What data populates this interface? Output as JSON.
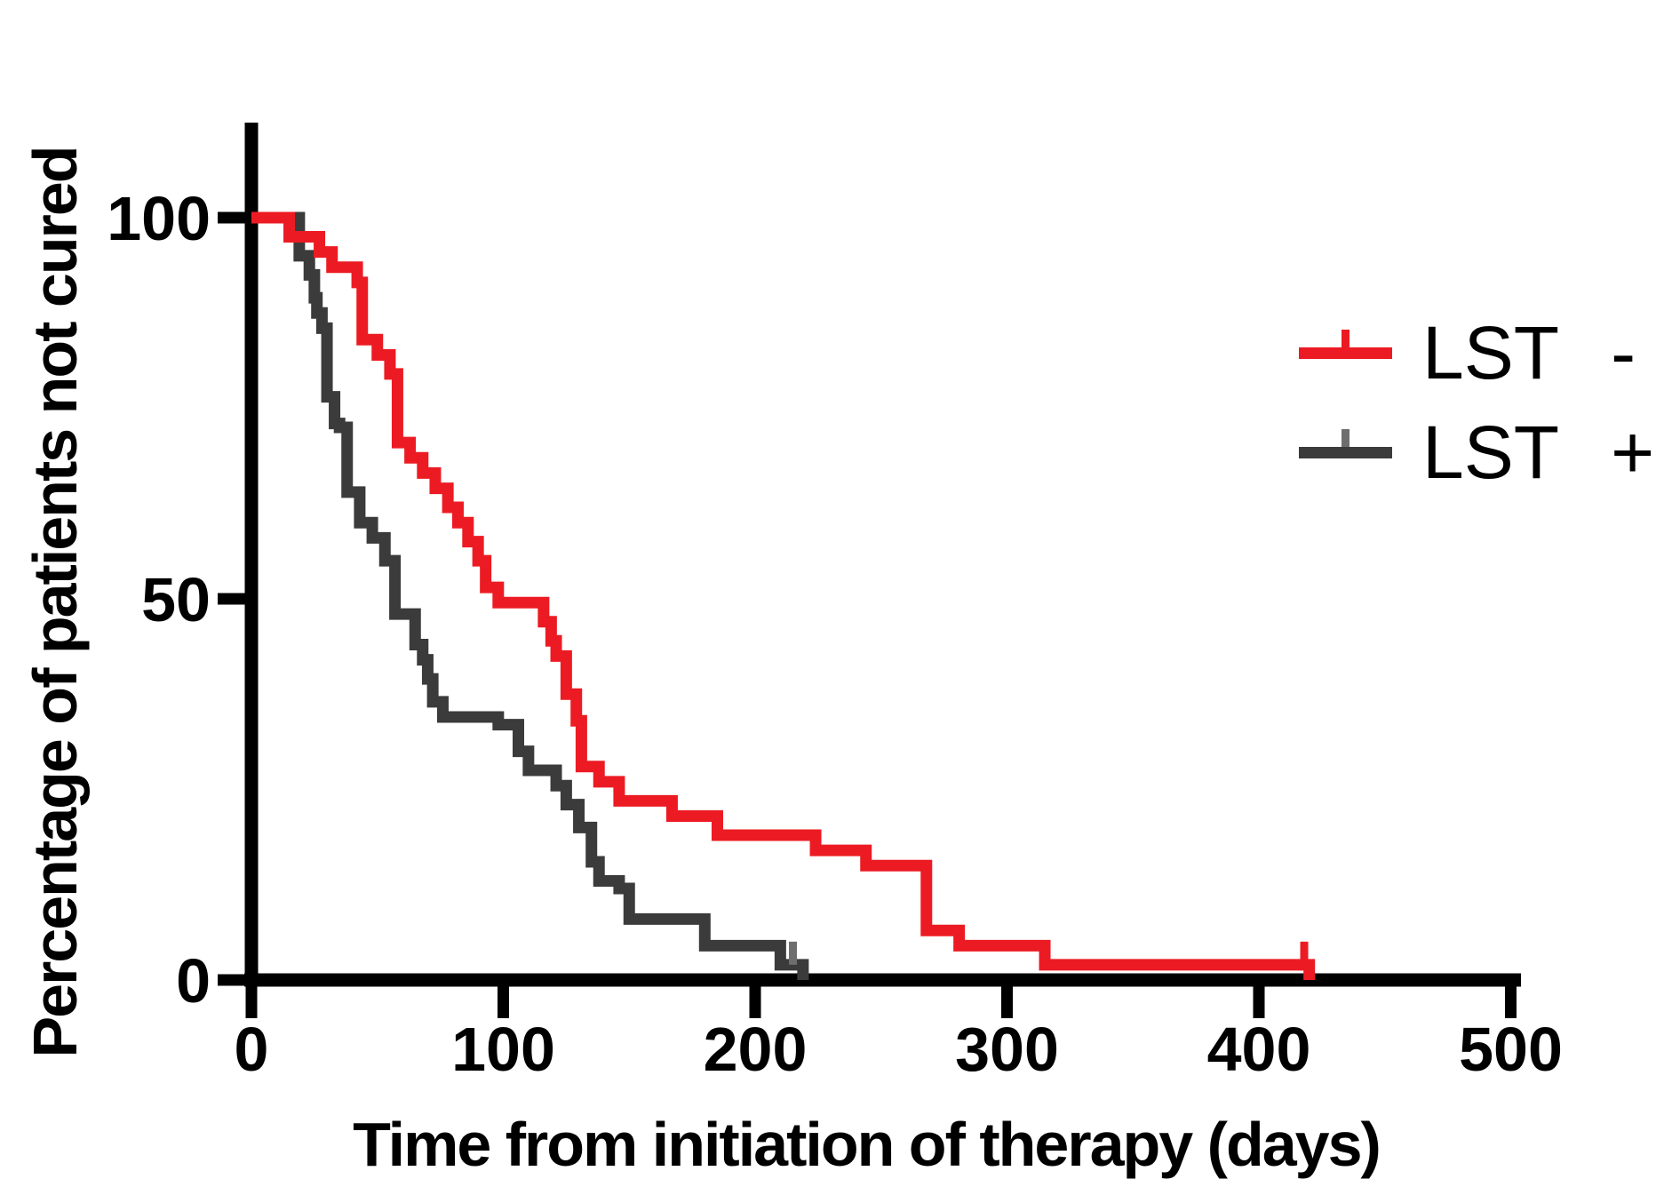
{
  "figure": {
    "background": "#ffffff",
    "axis_color": "#000000"
  },
  "chart_data": {
    "type": "line",
    "subtype": "kaplan-meier-step",
    "title": "",
    "xlabel": "Time from initiation of therapy (days)",
    "ylabel": "Percentage of patients not cured",
    "xlim": [
      0,
      500
    ],
    "ylim": [
      0,
      100
    ],
    "xticks": [
      0,
      100,
      200,
      300,
      400,
      500
    ],
    "yticks": [
      0,
      50,
      100
    ],
    "grid": false,
    "legend_position": "top-right",
    "series": [
      {
        "name": "LST -",
        "legend_text": "LST",
        "legend_sign": "-",
        "color": "#ec1b23",
        "censor_tick_color": "#ec1b23",
        "censor_ticks": [
          {
            "x": 418,
            "y": 2
          }
        ],
        "points": [
          [
            0,
            100
          ],
          [
            15,
            97.5
          ],
          [
            27,
            95.5
          ],
          [
            32,
            93.5
          ],
          [
            42,
            91.5
          ],
          [
            44,
            84
          ],
          [
            50,
            82
          ],
          [
            55,
            79.5
          ],
          [
            58,
            70.5
          ],
          [
            63,
            68.5
          ],
          [
            68,
            66.5
          ],
          [
            73,
            64.5
          ],
          [
            78,
            62
          ],
          [
            82,
            60
          ],
          [
            86,
            57.5
          ],
          [
            90,
            55
          ],
          [
            93,
            51.5
          ],
          [
            98,
            49.5
          ],
          [
            116,
            47
          ],
          [
            119,
            44.5
          ],
          [
            121,
            42.5
          ],
          [
            125,
            37.5
          ],
          [
            129,
            34
          ],
          [
            131,
            28
          ],
          [
            138,
            26
          ],
          [
            146,
            23.5
          ],
          [
            167,
            21.5
          ],
          [
            185,
            19
          ],
          [
            224,
            17
          ],
          [
            244,
            15
          ],
          [
            268,
            6.5
          ],
          [
            281,
            4.5
          ],
          [
            315,
            2
          ],
          [
            420,
            0
          ]
        ]
      },
      {
        "name": "LST +",
        "legend_text": "LST",
        "legend_sign": "+",
        "color": "#3b3b3b",
        "censor_tick_color": "#6e6e6e",
        "censor_ticks": [
          {
            "x": 215,
            "y": 2
          }
        ],
        "points": [
          [
            0,
            100
          ],
          [
            19,
            95
          ],
          [
            23,
            92.5
          ],
          [
            25,
            89.5
          ],
          [
            26,
            87.5
          ],
          [
            28,
            85.5
          ],
          [
            30,
            76.5
          ],
          [
            33,
            73
          ],
          [
            35,
            72.5
          ],
          [
            38,
            64
          ],
          [
            43,
            60
          ],
          [
            48,
            58
          ],
          [
            53,
            55
          ],
          [
            57,
            48
          ],
          [
            65,
            44
          ],
          [
            68,
            42
          ],
          [
            70,
            39.5
          ],
          [
            72,
            36.5
          ],
          [
            76,
            34.5
          ],
          [
            98,
            33.5
          ],
          [
            106,
            30
          ],
          [
            110,
            27.5
          ],
          [
            121,
            25.5
          ],
          [
            125,
            23
          ],
          [
            130,
            20
          ],
          [
            135,
            15.5
          ],
          [
            138,
            13
          ],
          [
            146,
            12
          ],
          [
            150,
            8
          ],
          [
            180,
            4.5
          ],
          [
            210,
            2
          ],
          [
            219,
            0
          ]
        ]
      }
    ]
  }
}
